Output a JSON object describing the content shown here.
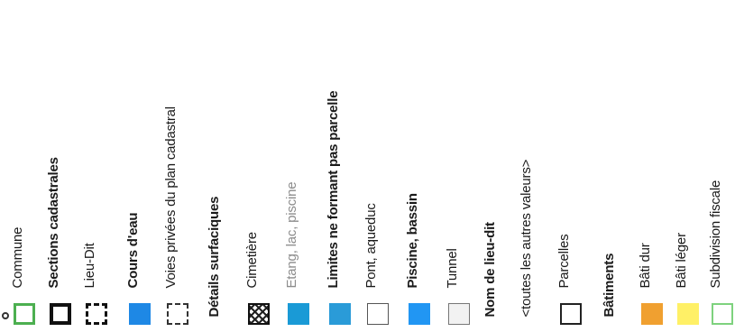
{
  "legend": {
    "entries": [
      {
        "label": "Commune",
        "style": "normal",
        "swatch": {
          "type": "border",
          "fill": "#ffffff",
          "border": "#4caf50",
          "width": 3
        }
      },
      {
        "label": "Sections cadastrales",
        "style": "bold",
        "swatch": {
          "type": "border",
          "fill": "#ffffff",
          "border": "#111111",
          "width": 4
        }
      },
      {
        "label": "Lieu-Dit",
        "style": "normal",
        "swatch": {
          "type": "dashed",
          "fill": "#ffffff",
          "border": "#111111",
          "width": 3
        }
      },
      {
        "label": "Cours d'eau",
        "style": "bold",
        "swatch": {
          "type": "fill",
          "fill": "#1e88e5",
          "border": "#1e88e5",
          "width": 1
        }
      },
      {
        "label": "Voies privées du plan cadastral",
        "style": "normal",
        "swatch": {
          "type": "dashed",
          "fill": "#ffffff",
          "border": "#333333",
          "width": 2
        }
      },
      {
        "label": "Détails surfaciques",
        "style": "header",
        "swatch": null
      },
      {
        "label": "Cimetière",
        "style": "normal",
        "swatch": {
          "type": "hatch",
          "fill": "#ffffff",
          "border": "#111111",
          "width": 2
        }
      },
      {
        "label": "Etang, lac, piscine",
        "style": "faded",
        "swatch": {
          "type": "fill",
          "fill": "#1a9ad6",
          "border": "#1a9ad6",
          "width": 1
        }
      },
      {
        "label": "Limites ne formant pas parcelle",
        "style": "bold",
        "swatch": {
          "type": "fill",
          "fill": "#2a9bd8",
          "border": "#2a9bd8",
          "width": 1
        }
      },
      {
        "label": "Pont, aqueduc",
        "style": "normal",
        "swatch": {
          "type": "border",
          "fill": "#ffffff",
          "border": "#555555",
          "width": 1
        }
      },
      {
        "label": "Piscine, bassin",
        "style": "bold",
        "swatch": {
          "type": "fill",
          "fill": "#2196f3",
          "border": "#2196f3",
          "width": 1
        }
      },
      {
        "label": "Tunnel",
        "style": "normal",
        "swatch": {
          "type": "border",
          "fill": "#f2f2f2",
          "border": "#777777",
          "width": 1
        }
      },
      {
        "label": "Nom de lieu-dit",
        "style": "header",
        "swatch": null
      },
      {
        "label": "<toutes les autres valeurs>",
        "style": "normal",
        "swatch": null
      },
      {
        "label": "Parcelles",
        "style": "normal",
        "swatch": {
          "type": "border",
          "fill": "#ffffff",
          "border": "#222222",
          "width": 2
        }
      },
      {
        "label": "Bâtiments",
        "style": "header",
        "swatch": null
      },
      {
        "label": "Bâti dur",
        "style": "normal",
        "swatch": {
          "type": "fill",
          "fill": "#f0a030",
          "border": "#f0a030",
          "width": 1
        }
      },
      {
        "label": "Bâti léger",
        "style": "normal",
        "swatch": {
          "type": "fill",
          "fill": "#fff066",
          "border": "#fff066",
          "width": 1
        }
      },
      {
        "label": "Subdivision fiscale",
        "style": "normal",
        "swatch": {
          "type": "border",
          "fill": "#ffffff",
          "border": "#7ed27e",
          "width": 2
        }
      }
    ]
  }
}
